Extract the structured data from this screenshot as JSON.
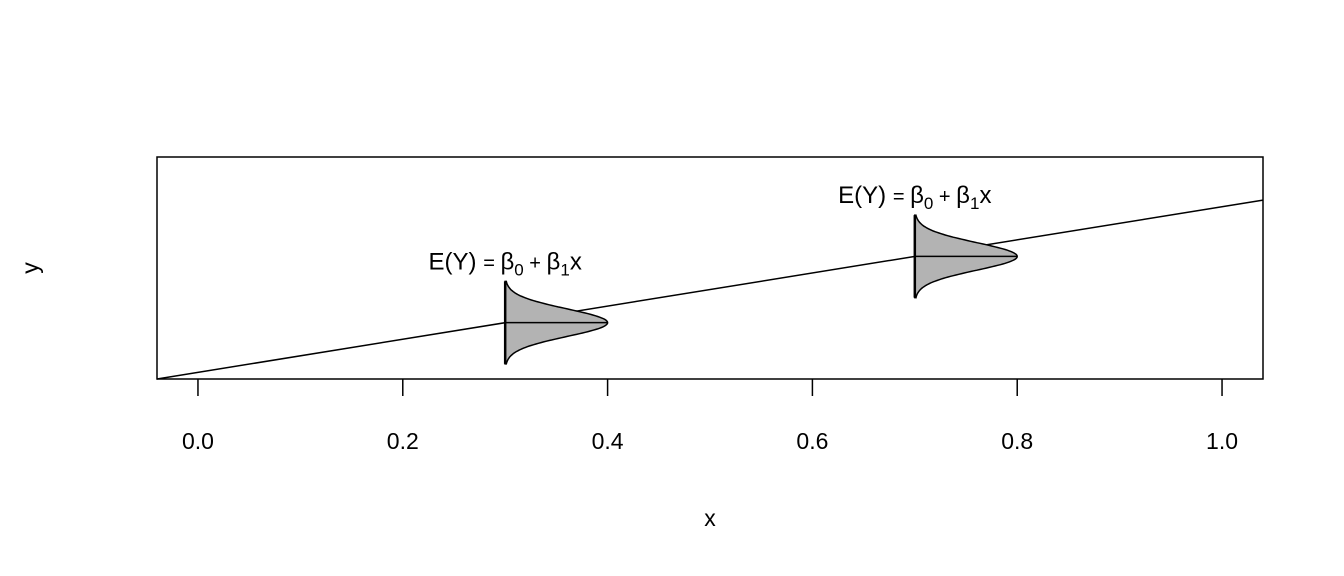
{
  "chart_data": {
    "type": "line",
    "title": "",
    "xlabel": "x",
    "ylabel": "y",
    "xlim": [
      -0.04,
      1.04
    ],
    "ylim": [
      -0.04,
      1.3
    ],
    "x_ticks": [
      0.0,
      0.2,
      0.4,
      0.6,
      0.8,
      1.0
    ],
    "x_tick_labels": [
      "0.0",
      "0.2",
      "0.4",
      "0.6",
      "0.8",
      "1.0"
    ],
    "y_axis_ticks_shown": false,
    "grid": false,
    "line": {
      "intercept": 0,
      "slope": 1
    },
    "densities": [
      {
        "x": 0.3,
        "mean": 0.3,
        "sd": 0.083,
        "peak_width_x": 0.1,
        "fill": "#b3b3b3"
      },
      {
        "x": 0.7,
        "mean": 0.7,
        "sd": 0.083,
        "peak_width_x": 0.1,
        "fill": "#b3b3b3"
      }
    ],
    "annotations": [
      {
        "x": 0.3,
        "lhs": "E(Y)",
        "eq": "=",
        "b0": "β",
        "sub0": "0",
        "plus": "+",
        "b1": "β",
        "sub1": "1",
        "var": "x"
      },
      {
        "x": 0.7,
        "lhs": "E(Y)",
        "eq": "=",
        "b0": "β",
        "sub0": "0",
        "plus": "+",
        "b1": "β",
        "sub1": "1",
        "var": "x"
      }
    ]
  }
}
